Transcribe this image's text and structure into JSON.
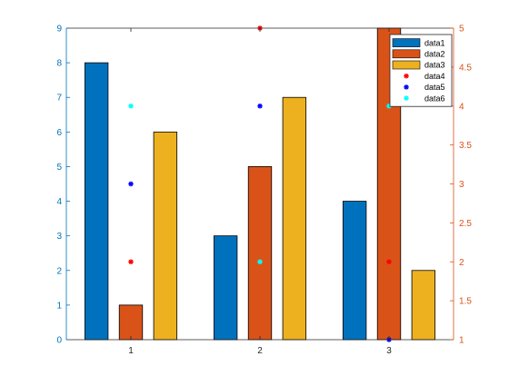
{
  "chart_data": {
    "type": "bar",
    "categories": [
      "1",
      "2",
      "3"
    ],
    "x": [
      1,
      2,
      3
    ],
    "y_left": {
      "lim": [
        0,
        9
      ],
      "ticks": [
        0,
        1,
        2,
        3,
        4,
        5,
        6,
        7,
        8,
        9
      ],
      "tick_labels": [
        "0",
        "1",
        "2",
        "3",
        "4",
        "5",
        "6",
        "7",
        "8",
        "9"
      ],
      "color": "#0072BD"
    },
    "y_right": {
      "lim": [
        1,
        5
      ],
      "ticks": [
        1,
        1.5,
        2,
        2.5,
        3,
        3.5,
        4,
        4.5,
        5
      ],
      "tick_labels": [
        "1",
        "1.5",
        "2",
        "2.5",
        "3",
        "3.5",
        "4",
        "4.5",
        "5"
      ],
      "color": "#D95319"
    },
    "x_tick_labels": [
      "1",
      "2",
      "3"
    ],
    "series": [
      {
        "name": "data1",
        "kind": "bar",
        "axis": "left",
        "values": [
          8,
          3,
          4
        ],
        "color": "#0072BD"
      },
      {
        "name": "data2",
        "kind": "bar",
        "axis": "left",
        "values": [
          1,
          5,
          9
        ],
        "color": "#D95319"
      },
      {
        "name": "data3",
        "kind": "bar",
        "axis": "left",
        "values": [
          6,
          7,
          2
        ],
        "color": "#EDB120"
      },
      {
        "name": "data4",
        "kind": "scatter",
        "axis": "right",
        "values": [
          2,
          5,
          2
        ],
        "color": "#FF0000"
      },
      {
        "name": "data5",
        "kind": "scatter",
        "axis": "right",
        "values": [
          3,
          4,
          1
        ],
        "color": "#0000FF"
      },
      {
        "name": "data6",
        "kind": "scatter",
        "axis": "right",
        "values": [
          4,
          2,
          4
        ],
        "color": "#00FFFF"
      }
    ],
    "grid": false,
    "legend_position": "top-right",
    "title": "",
    "xlabel": "",
    "ylabel": ""
  }
}
